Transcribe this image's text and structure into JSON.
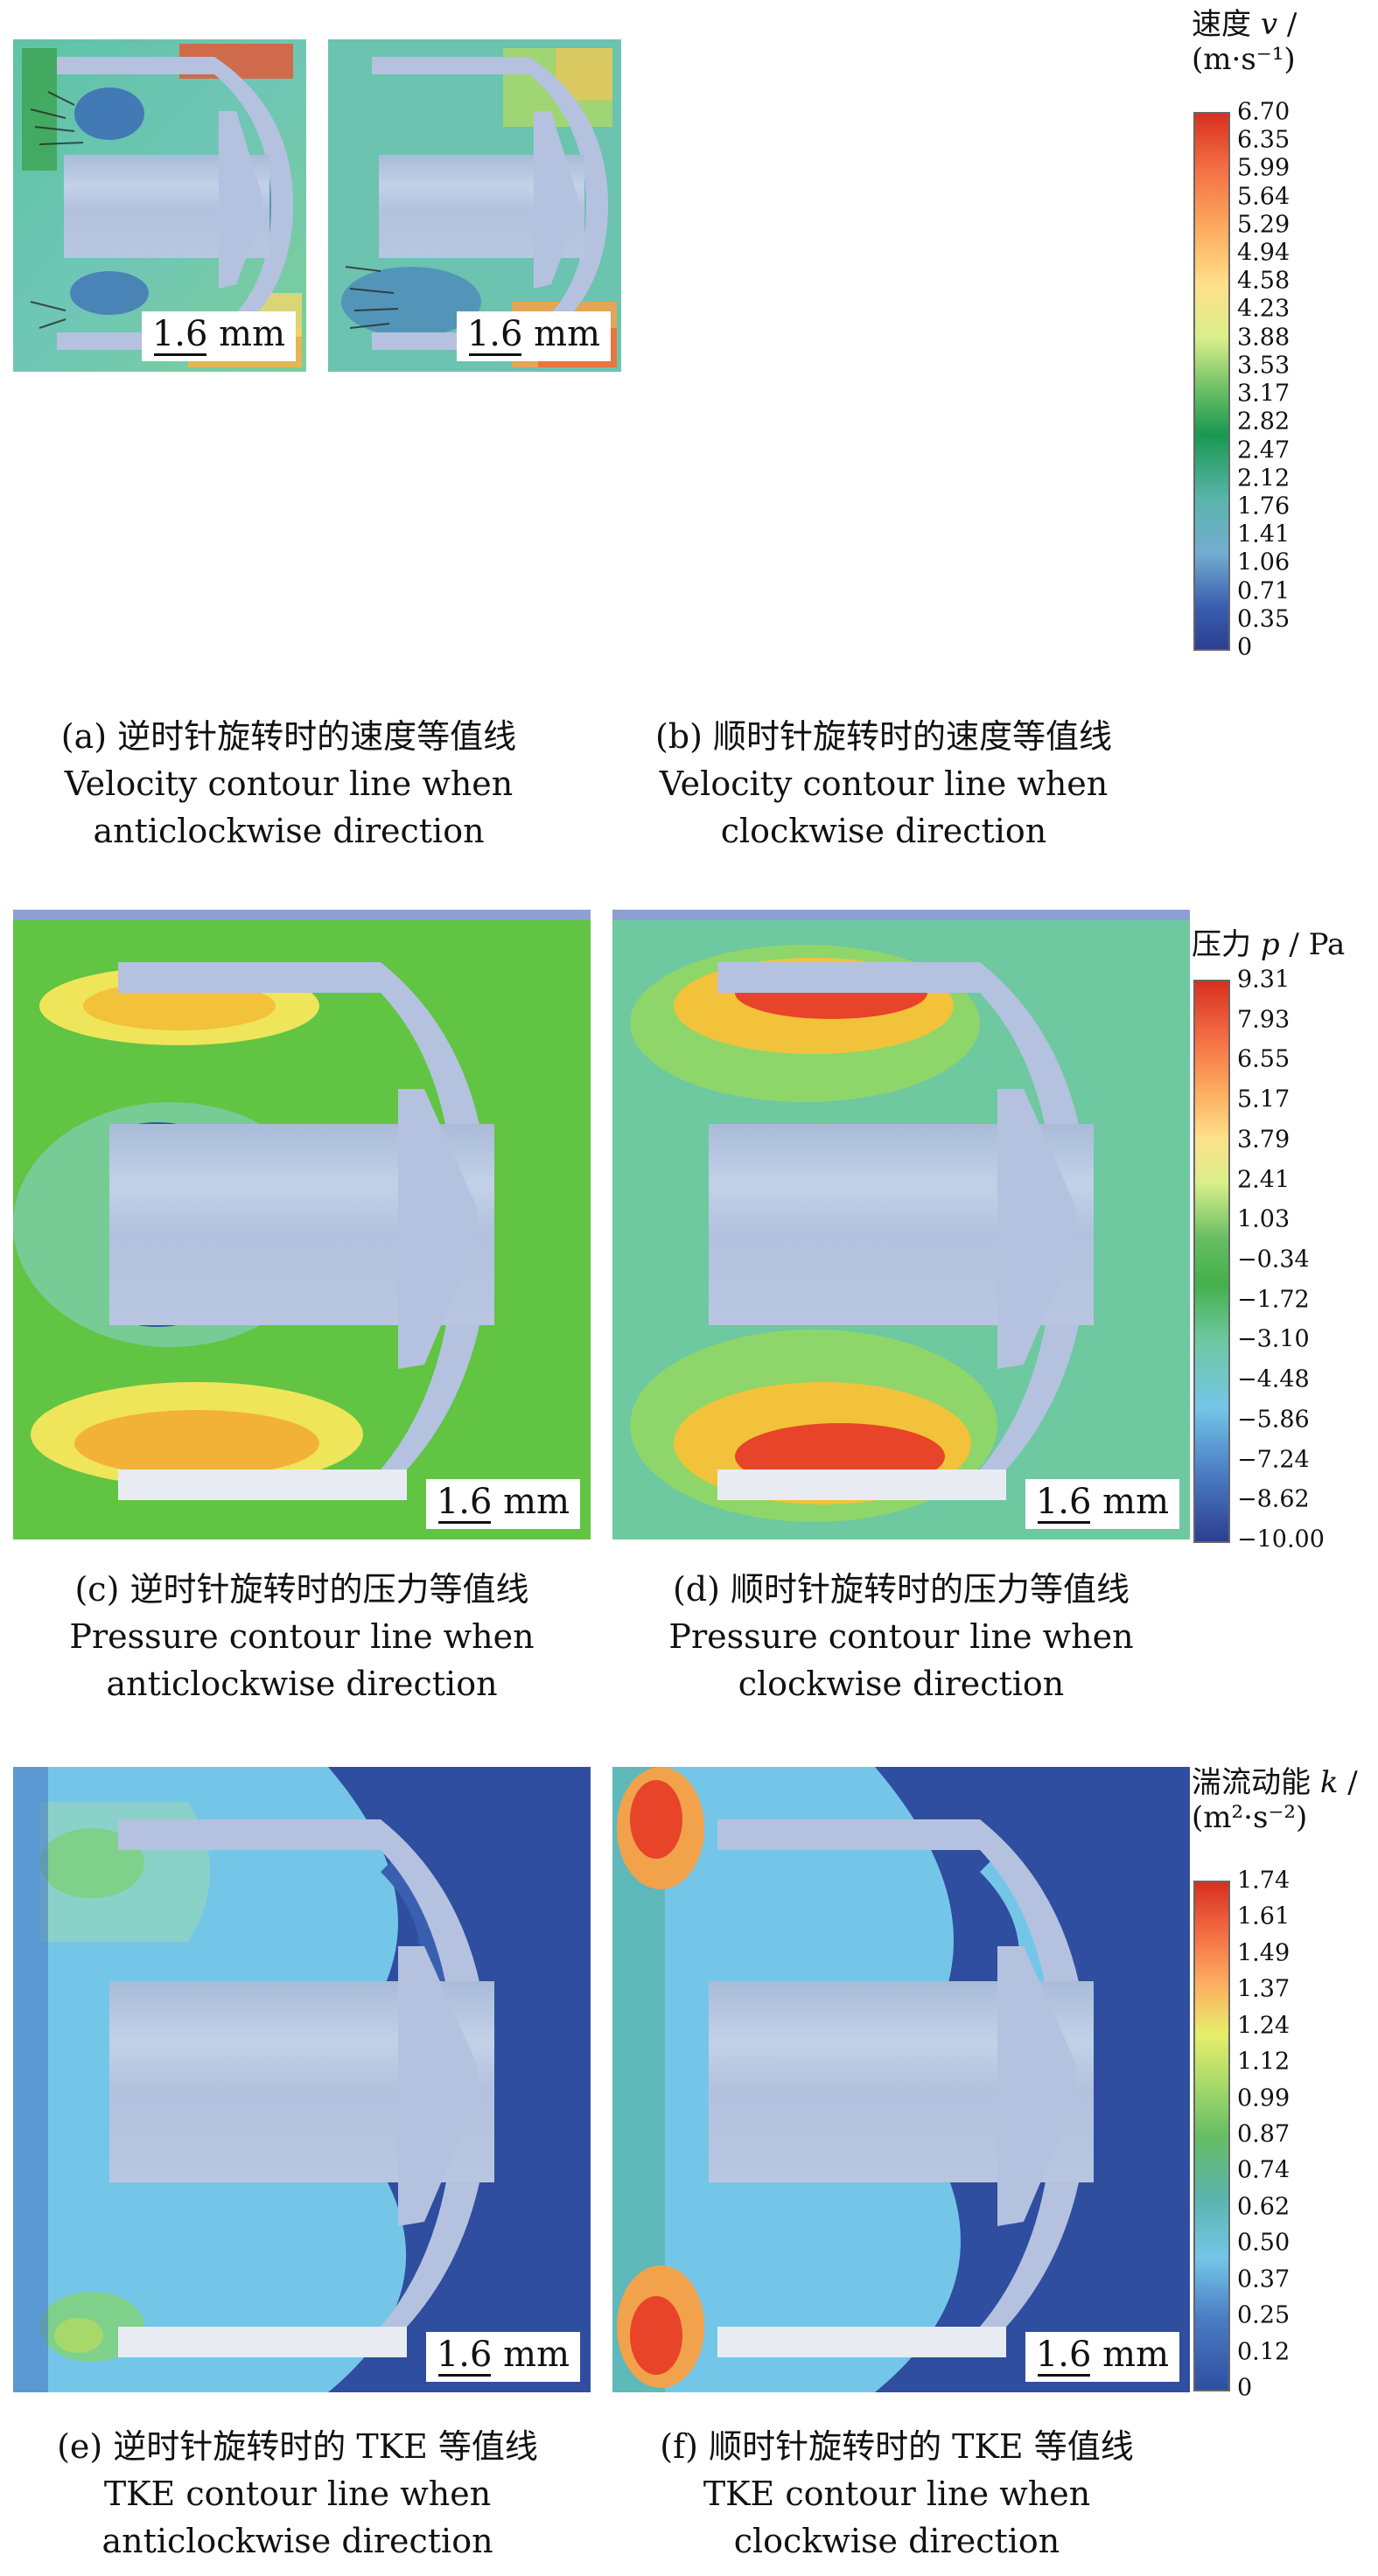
{
  "velocity_legend": {
    "title_cn": "速度",
    "symbol": "v",
    "unit": "(m·s⁻¹)",
    "ticks": [
      "6.70",
      "6.35",
      "5.99",
      "5.64",
      "5.29",
      "4.94",
      "4.58",
      "4.23",
      "3.88",
      "3.53",
      "3.17",
      "2.82",
      "2.47",
      "2.12",
      "1.76",
      "1.41",
      "1.06",
      "0.71",
      "0.35",
      "0"
    ]
  },
  "pressure_legend": {
    "title_cn": "压力",
    "symbol": "p",
    "unit": "Pa",
    "ticks": [
      "9.31",
      "7.93",
      "6.55",
      "5.17",
      "3.79",
      "2.41",
      "1.03",
      "−0.34",
      "−1.72",
      "−3.10",
      "−4.48",
      "−5.86",
      "−7.24",
      "−8.62",
      "−10.00"
    ]
  },
  "tke_legend": {
    "title_cn": "湍流动能",
    "symbol": "k",
    "unit": "(m²·s⁻²)",
    "ticks": [
      "1.74",
      "1.61",
      "1.49",
      "1.37",
      "1.24",
      "1.12",
      "0.99",
      "0.87",
      "0.74",
      "0.62",
      "0.50",
      "0.37",
      "0.25",
      "0.12",
      "0"
    ]
  },
  "scale_bar": "1.6 mm",
  "panels": [
    {
      "id": "a",
      "caption_cn": "(a) 逆时针旋转时的速度等值线",
      "caption_en1": "Velocity contour line when",
      "caption_en2": "anticlockwise direction"
    },
    {
      "id": "b",
      "caption_cn": "(b) 顺时针旋转时的速度等值线",
      "caption_en1": "Velocity contour line when",
      "caption_en2": "clockwise direction"
    },
    {
      "id": "c",
      "caption_cn": "(c) 逆时针旋转时的压力等值线",
      "caption_en1": "Pressure contour line when",
      "caption_en2": "anticlockwise direction"
    },
    {
      "id": "d",
      "caption_cn": "(d) 顺时针旋转时的压力等值线",
      "caption_en1": "Pressure contour line when",
      "caption_en2": "clockwise direction"
    },
    {
      "id": "e",
      "caption_cn": "(e) 逆时针旋转时的 TKE 等值线",
      "caption_en1": "TKE contour  line when",
      "caption_en2": "anticlockwise direction"
    },
    {
      "id": "f",
      "caption_cn": "(f) 顺时针旋转时的 TKE 等值线",
      "caption_en1": "TKE contour  line when",
      "caption_en2": "clockwise direction"
    }
  ],
  "colors": {
    "structure": "#b4c2df",
    "velocity_scale": [
      "#d7301f",
      "#f46d43",
      "#fdae61",
      "#fee08b",
      "#d9ef8b",
      "#66bd63",
      "#1a9850",
      "#5ab4ac",
      "#74add1",
      "#3a5fb0",
      "#2c3e90"
    ],
    "tke_scale": [
      "#d7301f",
      "#f46d43",
      "#fdae61",
      "#e6ee6b",
      "#a6d96a",
      "#66bd63",
      "#5ab4ac",
      "#74c6e8",
      "#4a7cc4",
      "#2f4ea0"
    ]
  }
}
